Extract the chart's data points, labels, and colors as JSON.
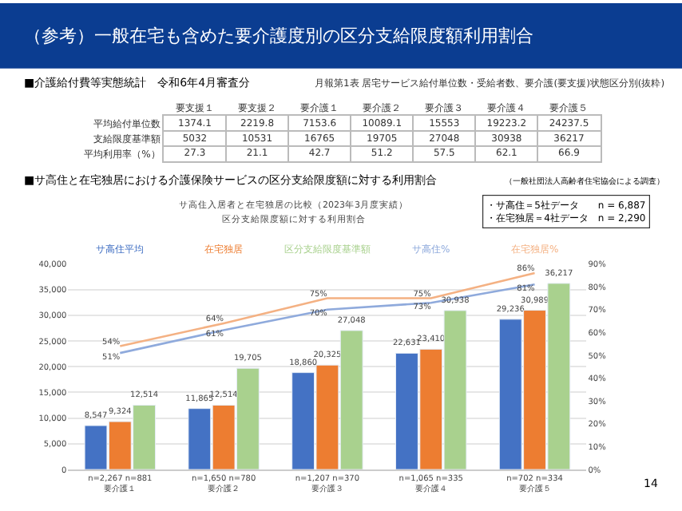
{
  "chart_data": [
    {
      "type": "other",
      "title": "（参考）一般在宅も含めた要介護度別の区分支給限度額利用割合",
      "subtitle": "■介護給付費等実態統計　令和6年4月審査分",
      "annotations": [
        "月報第1表 居宅サービス給付単位数・受給者数、要介護(要支援)状態区分別(抜粋)"
      ],
      "categories": [
        "要支援１",
        "要支援２",
        "要介護１",
        "要介護２",
        "要介護３",
        "要介護４",
        "要介護５"
      ],
      "y_categories": [
        "平均給付単位数",
        "支給限度基準額",
        "平均利用率（%）"
      ],
      "cell_labels": [
        [
          "1374.1",
          "2219.8",
          "7153.6",
          "10089.1",
          "15553",
          "19223.2",
          "24237.5"
        ],
        [
          "5032",
          "10531",
          "16765",
          "19705",
          "27048",
          "30938",
          "36217"
        ],
        [
          "27.3",
          "21.1",
          "42.7",
          "51.2",
          "57.5",
          "62.1",
          "66.9"
        ]
      ]
    },
    {
      "type": "bar",
      "title": "サ高住入居者と在宅独居の比較（2023年3月度実績）",
      "subtitle": "区分支給限度額に対する利用割合",
      "annotations": [
        "■サ高住と在宅独居における介護保険サービスの区分支給限度額に対する利用割合",
        "（一般社団法人高齢者住宅協会による調査）",
        "・サ高住＝5社データ　　n = 6,887\n・在宅独居＝4社データ　n = 2,290",
        "14"
      ],
      "categories": [
        "n=2,267 n=881\n要介護１",
        "n=1,650 n=780\n要介護２",
        "n=1,207 n=370\n要介護３",
        "n=1,065 n=335\n要介護４",
        "n=702 n=334\n要介護５"
      ],
      "series": [
        {
          "name": "サ高住平均",
          "color": "#4472c4",
          "values": [
            8547,
            11865,
            18860,
            22631,
            29236
          ],
          "value_labels": [
            "8,547",
            "11,865",
            "18,860",
            "22,631",
            "29,236"
          ]
        },
        {
          "name": "在宅独居",
          "color": "#ed7d31",
          "values": [
            9324,
            12514,
            20325,
            23410,
            30989
          ],
          "value_labels": [
            "9,324",
            "12,514",
            "20,325",
            "23,410",
            "30,989"
          ]
        },
        {
          "name": "区分支給限度基準額",
          "color": "#a9d18e",
          "values": [
            12514,
            19705,
            27048,
            30938,
            36217
          ],
          "value_labels": [
            "12,514",
            "19,705",
            "27,048",
            "30,938",
            "36,217"
          ]
        },
        {
          "name": "サ高住%",
          "type": "line",
          "axis": "y2",
          "color": "#8faadc",
          "values": [
            51,
            61,
            70,
            73,
            81
          ],
          "value_labels": [
            "51%",
            "61%",
            "70%",
            "73%",
            "81%"
          ]
        },
        {
          "name": "在宅独居%",
          "type": "line",
          "axis": "y2",
          "color": "#f4b183",
          "values": [
            54,
            64,
            75,
            75,
            86
          ],
          "value_labels": [
            "54%",
            "64%",
            "75%",
            "75%",
            "86%"
          ]
        }
      ],
      "ylim": [
        0,
        40000
      ],
      "yticks": [
        {
          "value": 0,
          "label": "0"
        },
        {
          "value": 5000,
          "label": "5,000"
        },
        {
          "value": 10000,
          "label": "10,000"
        },
        {
          "value": 15000,
          "label": "15,000"
        },
        {
          "value": 20000,
          "label": "20,000"
        },
        {
          "value": 25000,
          "label": "25,000"
        },
        {
          "value": 30000,
          "label": "30,000"
        },
        {
          "value": 35000,
          "label": "35,000"
        },
        {
          "value": 40000,
          "label": "40,000"
        }
      ],
      "y2lim": [
        0,
        90
      ],
      "y2ticks": [
        {
          "value": 0,
          "label": "0%"
        },
        {
          "value": 10,
          "label": "10%"
        },
        {
          "value": 20,
          "label": "20%"
        },
        {
          "value": 30,
          "label": "30%"
        },
        {
          "value": 40,
          "label": "40%"
        },
        {
          "value": 50,
          "label": "50%"
        },
        {
          "value": 60,
          "label": "60%"
        },
        {
          "value": 70,
          "label": "70%"
        },
        {
          "value": 80,
          "label": "80%"
        },
        {
          "value": 90,
          "label": "90%"
        }
      ],
      "grid": "y",
      "legend": "top",
      "marker": "none",
      "line_style": "solid"
    }
  ]
}
